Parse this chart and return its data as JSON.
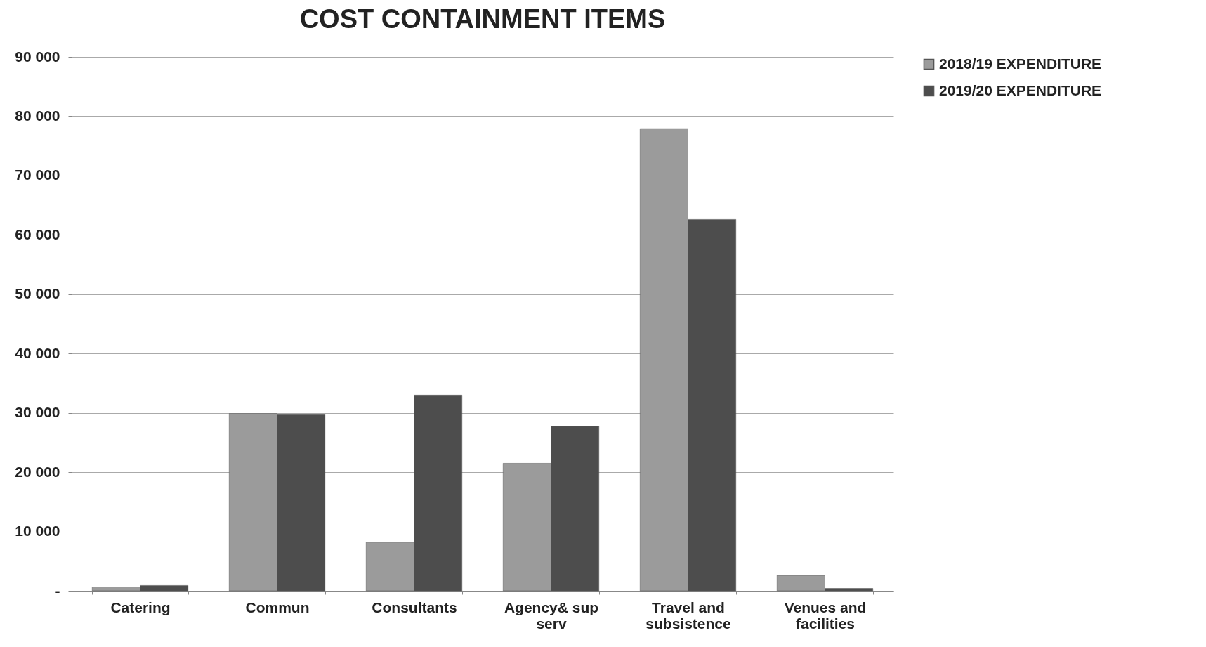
{
  "chart_data": {
    "type": "bar",
    "title": "COST CONTAINMENT  ITEMS",
    "categories": [
      "Catering",
      "Commun",
      "Consultants",
      "Agency& sup serv",
      "Travel and subsistence",
      "Venues and facilities"
    ],
    "series": [
      {
        "name": "2018/19 EXPENDITURE",
        "color": "#9b9b9b",
        "values": [
          650,
          29900,
          8200,
          21500,
          77900,
          2600
        ]
      },
      {
        "name": "2019/20 EXPENDITURE",
        "color": "#4d4d4d",
        "values": [
          900,
          29700,
          33000,
          27700,
          62600,
          400
        ]
      }
    ],
    "ylim": [
      0,
      90000
    ],
    "yticks": [
      {
        "value": 0,
        "label": "-"
      },
      {
        "value": 10000,
        "label": "10 000"
      },
      {
        "value": 20000,
        "label": "20 000"
      },
      {
        "value": 30000,
        "label": "30 000"
      },
      {
        "value": 40000,
        "label": "40 000"
      },
      {
        "value": 50000,
        "label": "50 000"
      },
      {
        "value": 60000,
        "label": "60 000"
      },
      {
        "value": 70000,
        "label": "70 000"
      },
      {
        "value": 80000,
        "label": "80 000"
      },
      {
        "value": 90000,
        "label": "90 000"
      }
    ],
    "grid": "y",
    "legend": "right"
  }
}
